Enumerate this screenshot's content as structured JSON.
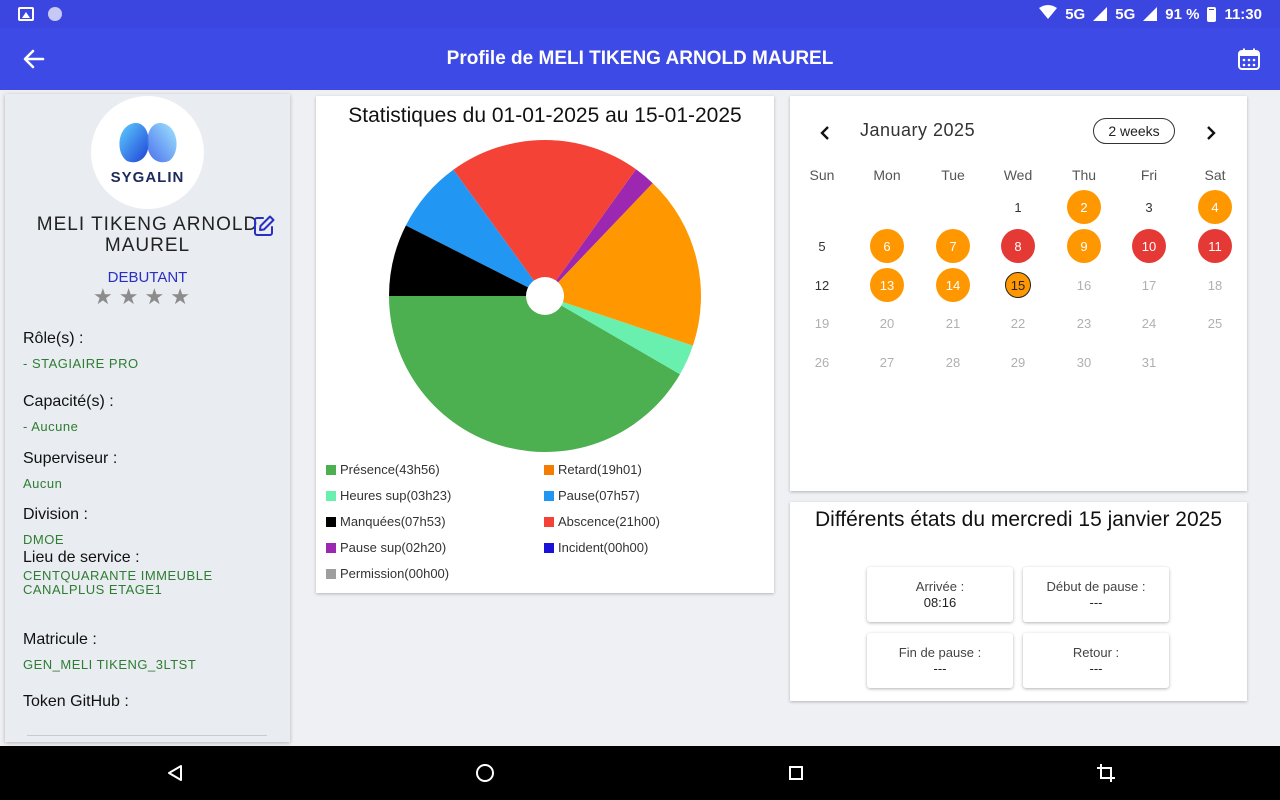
{
  "status_bar": {
    "network": "5G",
    "network2": "5G",
    "battery": "91 %",
    "time": "11:30"
  },
  "app_bar": {
    "title": "Profile de MELI TIKENG ARNOLD MAUREL",
    "back_icon": "arrow-left-icon",
    "calendar_icon": "calendar-icon"
  },
  "profile": {
    "logo_text": "SYGALIN",
    "name": "MELI TIKENG ARNOLD MAUREL",
    "level": "DEBUTANT",
    "stars": [
      "★",
      "★",
      "★",
      "★"
    ],
    "rating": 0,
    "roles_label": "Rôle(s) :",
    "roles_value": "- STAGIAIRE PRO",
    "capacities_label": "Capacité(s) :",
    "capacities_value": "- Aucune",
    "supervisor_label": "Superviseur :",
    "supervisor_value": "Aucun",
    "division_label": "Division :",
    "division_value": "DMOE",
    "service_label": "Lieu de service :",
    "service_value": "CENTQUARANTE IMMEUBLE CANALPLUS ETAGE1",
    "matricule_label": "Matricule :",
    "matricule_value": "GEN_MELI TIKENG_3LTST",
    "github_label": "Token GitHub :"
  },
  "chart_data": {
    "type": "pie",
    "title": "Statistiques du 01-01-2025 au 15-01-2025",
    "slices": [
      {
        "label": "Présence(43h56)",
        "value": 43.93,
        "color": "#4caf50"
      },
      {
        "label": "Retard(19h01)",
        "value": 19.02,
        "color": "#f57c00"
      },
      {
        "label": "Heures sup(03h23)",
        "value": 3.38,
        "color": "#69f0ae"
      },
      {
        "label": "Pause(07h57)",
        "value": 7.95,
        "color": "#2196f3"
      },
      {
        "label": "Manquées(07h53)",
        "value": 7.88,
        "color": "#000000"
      },
      {
        "label": "Abscence(21h00)",
        "value": 21.0,
        "color": "#f44336"
      },
      {
        "label": "Pause sup(02h20)",
        "value": 2.33,
        "color": "#9c27b0"
      },
      {
        "label": "Incident(00h00)",
        "value": 0,
        "color": "#1a12d6"
      },
      {
        "label": "Permission(00h00)",
        "value": 0,
        "color": "#9e9e9e"
      }
    ],
    "pie_order": [
      "Présence(43h56)",
      "Heures sup(03h23)",
      "Retard(19h01)",
      "Pause sup(02h20)",
      "Abscence(21h00)",
      "Pause(07h57)",
      "Manquées(07h53)"
    ],
    "pie_colors": {
      "Retard(19h01)": "#ff9800"
    },
    "legend_position": "bottom"
  },
  "calendar": {
    "month": "January 2025",
    "format_button": "2 weeks",
    "weekdays": [
      "Sun",
      "Mon",
      "Tue",
      "Wed",
      "Thu",
      "Fri",
      "Sat"
    ],
    "weeks": [
      [
        null,
        null,
        null,
        {
          "d": "1",
          "s": "cur"
        },
        {
          "d": "2",
          "s": "late"
        },
        {
          "d": "3",
          "s": "cur"
        },
        {
          "d": "4",
          "s": "late"
        }
      ],
      [
        {
          "d": "5",
          "s": "cur"
        },
        {
          "d": "6",
          "s": "late"
        },
        {
          "d": "7",
          "s": "late"
        },
        {
          "d": "8",
          "s": "absent"
        },
        {
          "d": "9",
          "s": "late"
        },
        {
          "d": "10",
          "s": "absent"
        },
        {
          "d": "11",
          "s": "absent"
        }
      ],
      [
        {
          "d": "12",
          "s": "cur"
        },
        {
          "d": "13",
          "s": "late"
        },
        {
          "d": "14",
          "s": "late"
        },
        {
          "d": "15",
          "s": "today"
        },
        {
          "d": "16",
          "s": "future"
        },
        {
          "d": "17",
          "s": "future"
        },
        {
          "d": "18",
          "s": "future"
        }
      ],
      [
        {
          "d": "19",
          "s": "future"
        },
        {
          "d": "20",
          "s": "future"
        },
        {
          "d": "21",
          "s": "future"
        },
        {
          "d": "22",
          "s": "future"
        },
        {
          "d": "23",
          "s": "future"
        },
        {
          "d": "24",
          "s": "future"
        },
        {
          "d": "25",
          "s": "future"
        }
      ],
      [
        {
          "d": "26",
          "s": "future"
        },
        {
          "d": "27",
          "s": "future"
        },
        {
          "d": "28",
          "s": "future"
        },
        {
          "d": "29",
          "s": "future"
        },
        {
          "d": "30",
          "s": "future"
        },
        {
          "d": "31",
          "s": "future"
        },
        null
      ]
    ],
    "colors": {
      "late": "#ff9800",
      "absent": "#e53935"
    }
  },
  "states": {
    "title": "Différents états du mercredi 15 janvier 2025",
    "items": [
      {
        "label": "Arrivée :",
        "value": "08:16"
      },
      {
        "label": "Début de pause :",
        "value": "---"
      },
      {
        "label": "Fin de pause :",
        "value": "---"
      },
      {
        "label": "Retour :",
        "value": "---"
      }
    ]
  },
  "nav": {
    "back_icon": "nav-back-icon",
    "home_icon": "nav-home-icon",
    "recents_icon": "nav-recents-icon",
    "rotate_icon": "nav-rotate-icon"
  },
  "colors": {
    "primary": "#3d4ae6",
    "level_text": "#2a2fc4",
    "field_value": "#2e7d32"
  }
}
